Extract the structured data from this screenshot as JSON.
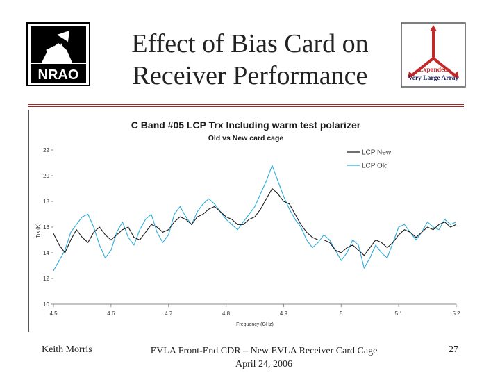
{
  "slide": {
    "title_line1": "Effect of Bias Card on",
    "title_line2": "Receiver Performance",
    "left_logo_text": "NRAO",
    "right_logo_line1": "Expanded",
    "right_logo_line2": "Very Large Array"
  },
  "footer": {
    "author": "Keith Morris",
    "event_line1": "EVLA Front-End CDR – New EVLA Receiver Card Cage",
    "event_line2": "April 24, 2006",
    "page": "27"
  },
  "colors": {
    "accent_rule": "#b02020",
    "lcp_new": "#1a1a1a",
    "lcp_old": "#2eaad8"
  },
  "chart_data": {
    "type": "line",
    "title": "C Band #05 LCP Trx Including warm test polarizer",
    "subtitle": "Old vs New card cage",
    "xlabel": "Frequency (GHz)",
    "ylabel": "Trx (K)",
    "xlim": [
      4.5,
      5.2
    ],
    "ylim": [
      10,
      22
    ],
    "xticks": [
      "4.5",
      "4.6",
      "4.7",
      "4.8",
      "4.9",
      "5",
      "5.1",
      "5.2"
    ],
    "yticks": [
      "10",
      "12",
      "14",
      "16",
      "18",
      "20",
      "22"
    ],
    "legend_position": "top-right",
    "grid": false,
    "series": [
      {
        "name": "LCP New",
        "color": "#1a1a1a",
        "x": [
          4.5,
          4.51,
          4.52,
          4.53,
          4.54,
          4.55,
          4.56,
          4.57,
          4.58,
          4.59,
          4.6,
          4.61,
          4.62,
          4.63,
          4.64,
          4.65,
          4.66,
          4.67,
          4.68,
          4.69,
          4.7,
          4.71,
          4.72,
          4.73,
          4.74,
          4.75,
          4.76,
          4.77,
          4.78,
          4.79,
          4.8,
          4.81,
          4.82,
          4.83,
          4.84,
          4.85,
          4.86,
          4.87,
          4.88,
          4.89,
          4.9,
          4.91,
          4.92,
          4.93,
          4.94,
          4.95,
          4.96,
          4.97,
          4.98,
          4.99,
          5.0,
          5.01,
          5.02,
          5.03,
          5.04,
          5.05,
          5.06,
          5.07,
          5.08,
          5.09,
          5.1,
          5.11,
          5.12,
          5.13,
          5.14,
          5.15,
          5.16,
          5.17,
          5.18,
          5.19,
          5.2
        ],
        "y": [
          15.5,
          14.6,
          14.0,
          15.0,
          15.8,
          15.2,
          14.8,
          15.6,
          16.0,
          15.4,
          15.0,
          15.4,
          15.8,
          16.0,
          15.2,
          15.0,
          15.6,
          16.2,
          16.0,
          15.6,
          15.8,
          16.4,
          16.8,
          16.6,
          16.2,
          16.8,
          17.0,
          17.4,
          17.6,
          17.2,
          16.8,
          16.6,
          16.2,
          16.2,
          16.6,
          16.8,
          17.4,
          18.2,
          19.0,
          18.6,
          18.0,
          17.8,
          17.0,
          16.2,
          15.6,
          15.2,
          15.0,
          15.0,
          14.8,
          14.2,
          14.0,
          14.4,
          14.6,
          14.2,
          13.8,
          14.4,
          15.0,
          14.8,
          14.4,
          14.8,
          15.4,
          15.8,
          15.6,
          15.2,
          15.6,
          16.0,
          15.8,
          16.2,
          16.4,
          16.0,
          16.2
        ]
      },
      {
        "name": "LCP Old",
        "color": "#2eaad8",
        "x": [
          4.5,
          4.51,
          4.52,
          4.53,
          4.54,
          4.55,
          4.56,
          4.57,
          4.58,
          4.59,
          4.6,
          4.61,
          4.62,
          4.63,
          4.64,
          4.65,
          4.66,
          4.67,
          4.68,
          4.69,
          4.7,
          4.71,
          4.72,
          4.73,
          4.74,
          4.75,
          4.76,
          4.77,
          4.78,
          4.79,
          4.8,
          4.81,
          4.82,
          4.83,
          4.84,
          4.85,
          4.86,
          4.87,
          4.88,
          4.89,
          4.9,
          4.91,
          4.92,
          4.93,
          4.94,
          4.95,
          4.96,
          4.97,
          4.98,
          4.99,
          5.0,
          5.01,
          5.02,
          5.03,
          5.04,
          5.05,
          5.06,
          5.07,
          5.08,
          5.09,
          5.1,
          5.11,
          5.12,
          5.13,
          5.14,
          5.15,
          5.16,
          5.17,
          5.18,
          5.19,
          5.2
        ],
        "y": [
          12.6,
          13.4,
          14.2,
          15.6,
          16.2,
          16.8,
          17.0,
          16.0,
          14.6,
          13.6,
          14.2,
          15.6,
          16.4,
          15.2,
          14.6,
          15.8,
          16.6,
          17.0,
          15.6,
          14.8,
          15.4,
          17.0,
          17.6,
          16.8,
          16.2,
          17.2,
          17.8,
          18.2,
          17.8,
          17.2,
          16.6,
          16.2,
          15.8,
          16.4,
          17.0,
          17.6,
          18.6,
          19.6,
          20.8,
          19.6,
          18.4,
          17.4,
          16.6,
          16.0,
          15.0,
          14.4,
          14.8,
          15.4,
          15.0,
          14.2,
          13.4,
          14.0,
          15.0,
          14.6,
          12.8,
          13.6,
          14.6,
          14.0,
          13.6,
          14.8,
          16.0,
          16.2,
          15.6,
          15.0,
          15.6,
          16.4,
          16.0,
          15.8,
          16.6,
          16.2,
          16.4
        ]
      }
    ]
  }
}
